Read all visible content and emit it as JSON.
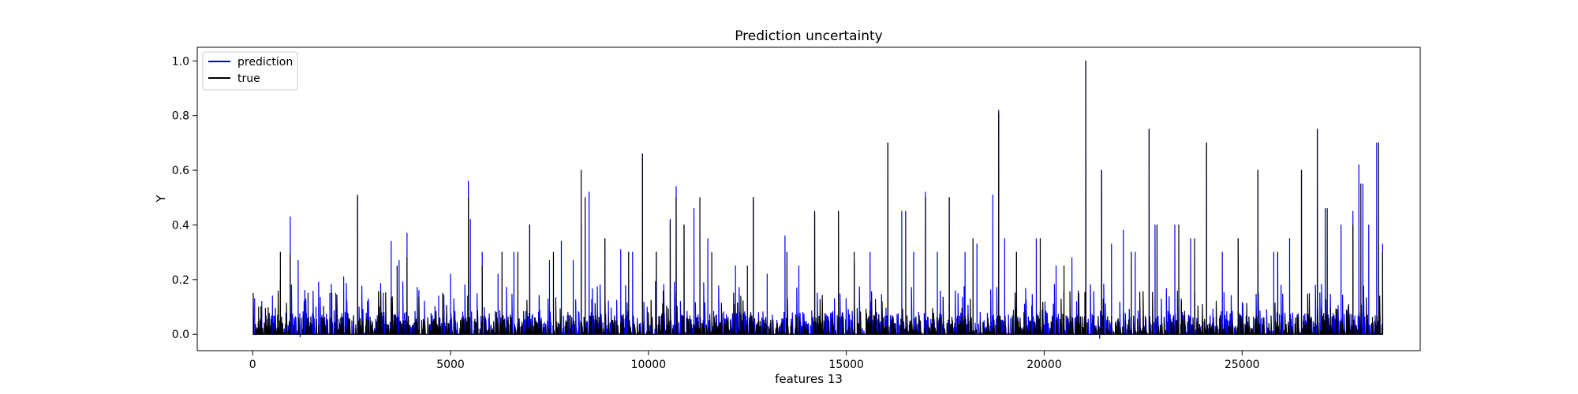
{
  "chart_data": {
    "type": "line",
    "title": "Prediction uncertainty",
    "xlabel": "features 13",
    "ylabel": "Y",
    "xlim": [
      -1400,
      29500
    ],
    "ylim": [
      -0.06,
      1.05
    ],
    "x_ticks": [
      0,
      5000,
      10000,
      15000,
      20000,
      25000
    ],
    "y_ticks": [
      0.0,
      0.2,
      0.4,
      0.6,
      0.8,
      1.0
    ],
    "x_tick_labels": [
      "0",
      "5000",
      "10000",
      "15000",
      "20000",
      "25000"
    ],
    "y_tick_labels": [
      "0.0",
      "0.2",
      "0.4",
      "0.6",
      "0.8",
      "1.0"
    ],
    "grid": false,
    "legend": {
      "placement": "top-left"
    },
    "series": [
      {
        "name": "prediction",
        "color": "#0000ff",
        "baseline": 0.0,
        "typical_max": 0.12,
        "peaks": [
          [
            50,
            0.13
          ],
          [
            230,
            0.12
          ],
          [
            500,
            0.14
          ],
          [
            700,
            0.2
          ],
          [
            950,
            0.43
          ],
          [
            1150,
            0.27
          ],
          [
            1300,
            0.12
          ],
          [
            1600,
            0.1
          ],
          [
            1950,
            0.15
          ],
          [
            2300,
            0.21
          ],
          [
            2650,
            0.5
          ],
          [
            2900,
            0.12
          ],
          [
            3300,
            0.15
          ],
          [
            3500,
            0.34
          ],
          [
            3700,
            0.27
          ],
          [
            3900,
            0.37
          ],
          [
            4200,
            0.16
          ],
          [
            4700,
            0.14
          ],
          [
            5000,
            0.22
          ],
          [
            5450,
            0.56
          ],
          [
            5500,
            0.42
          ],
          [
            5800,
            0.3
          ],
          [
            6200,
            0.22
          ],
          [
            6600,
            0.3
          ],
          [
            7000,
            0.4
          ],
          [
            7500,
            0.27
          ],
          [
            7800,
            0.34
          ],
          [
            8100,
            0.27
          ],
          [
            8300,
            0.4
          ],
          [
            8500,
            0.52
          ],
          [
            8900,
            0.35
          ],
          [
            9300,
            0.31
          ],
          [
            9600,
            0.3
          ],
          [
            9850,
            0.66
          ],
          [
            10200,
            0.3
          ],
          [
            10550,
            0.42
          ],
          [
            10700,
            0.54
          ],
          [
            10900,
            0.4
          ],
          [
            11150,
            0.46
          ],
          [
            11500,
            0.35
          ],
          [
            12200,
            0.25
          ],
          [
            12650,
            0.5
          ],
          [
            13000,
            0.22
          ],
          [
            13450,
            0.36
          ],
          [
            13800,
            0.25
          ],
          [
            14200,
            0.44
          ],
          [
            14800,
            0.45
          ],
          [
            15200,
            0.26
          ],
          [
            15600,
            0.3
          ],
          [
            16050,
            0.7
          ],
          [
            16400,
            0.45
          ],
          [
            16700,
            0.3
          ],
          [
            17000,
            0.52
          ],
          [
            17300,
            0.3
          ],
          [
            17600,
            0.5
          ],
          [
            18000,
            0.3
          ],
          [
            18300,
            0.33
          ],
          [
            18700,
            0.51
          ],
          [
            18850,
            0.82
          ],
          [
            19000,
            0.35
          ],
          [
            19300,
            0.3
          ],
          [
            19800,
            0.35
          ],
          [
            20300,
            0.25
          ],
          [
            20700,
            0.28
          ],
          [
            21050,
            1.0
          ],
          [
            21450,
            0.6
          ],
          [
            21700,
            0.33
          ],
          [
            22000,
            0.38
          ],
          [
            22300,
            0.3
          ],
          [
            22650,
            0.75
          ],
          [
            22800,
            0.4
          ],
          [
            23300,
            0.4
          ],
          [
            23700,
            0.35
          ],
          [
            24100,
            0.7
          ],
          [
            24500,
            0.3
          ],
          [
            24900,
            0.35
          ],
          [
            25400,
            0.6
          ],
          [
            25800,
            0.3
          ],
          [
            26200,
            0.35
          ],
          [
            26500,
            0.6
          ],
          [
            26900,
            0.75
          ],
          [
            27100,
            0.46
          ],
          [
            27500,
            0.4
          ],
          [
            27800,
            0.45
          ],
          [
            27950,
            0.62
          ],
          [
            28050,
            0.55
          ],
          [
            28200,
            0.4
          ],
          [
            28400,
            0.7
          ],
          [
            28550,
            0.33
          ]
        ],
        "dips": [
          [
            1200,
            -0.01
          ],
          [
            21400,
            -0.015
          ]
        ]
      },
      {
        "name": "true",
        "color": "#000000",
        "baseline": 0.0,
        "typical_max": 0.1,
        "peaks": [
          [
            150,
            0.1
          ],
          [
            700,
            0.3
          ],
          [
            950,
            0.29
          ],
          [
            1400,
            0.15
          ],
          [
            2000,
            0.15
          ],
          [
            2650,
            0.51
          ],
          [
            3200,
            0.1
          ],
          [
            3650,
            0.25
          ],
          [
            3900,
            0.28
          ],
          [
            4800,
            0.15
          ],
          [
            5450,
            0.5
          ],
          [
            5800,
            0.25
          ],
          [
            6300,
            0.3
          ],
          [
            6700,
            0.3
          ],
          [
            7000,
            0.4
          ],
          [
            7600,
            0.3
          ],
          [
            8300,
            0.6
          ],
          [
            8400,
            0.5
          ],
          [
            8900,
            0.35
          ],
          [
            9500,
            0.3
          ],
          [
            9850,
            0.66
          ],
          [
            10200,
            0.3
          ],
          [
            10550,
            0.41
          ],
          [
            10700,
            0.5
          ],
          [
            10900,
            0.4
          ],
          [
            11300,
            0.5
          ],
          [
            11600,
            0.3
          ],
          [
            12500,
            0.25
          ],
          [
            12650,
            0.5
          ],
          [
            13500,
            0.3
          ],
          [
            14200,
            0.45
          ],
          [
            14800,
            0.45
          ],
          [
            15200,
            0.3
          ],
          [
            16050,
            0.7
          ],
          [
            16500,
            0.45
          ],
          [
            17000,
            0.5
          ],
          [
            17600,
            0.5
          ],
          [
            18200,
            0.35
          ],
          [
            18850,
            0.81
          ],
          [
            19300,
            0.3
          ],
          [
            19900,
            0.35
          ],
          [
            20500,
            0.25
          ],
          [
            21050,
            1.0
          ],
          [
            21450,
            0.6
          ],
          [
            22200,
            0.3
          ],
          [
            22650,
            0.75
          ],
          [
            22850,
            0.4
          ],
          [
            23400,
            0.4
          ],
          [
            23800,
            0.35
          ],
          [
            24100,
            0.7
          ],
          [
            24900,
            0.35
          ],
          [
            25400,
            0.6
          ],
          [
            25900,
            0.3
          ],
          [
            26500,
            0.6
          ],
          [
            26900,
            0.75
          ],
          [
            27150,
            0.46
          ],
          [
            27800,
            0.4
          ],
          [
            28000,
            0.55
          ],
          [
            28450,
            0.7
          ],
          [
            28550,
            0.3
          ]
        ]
      }
    ]
  }
}
